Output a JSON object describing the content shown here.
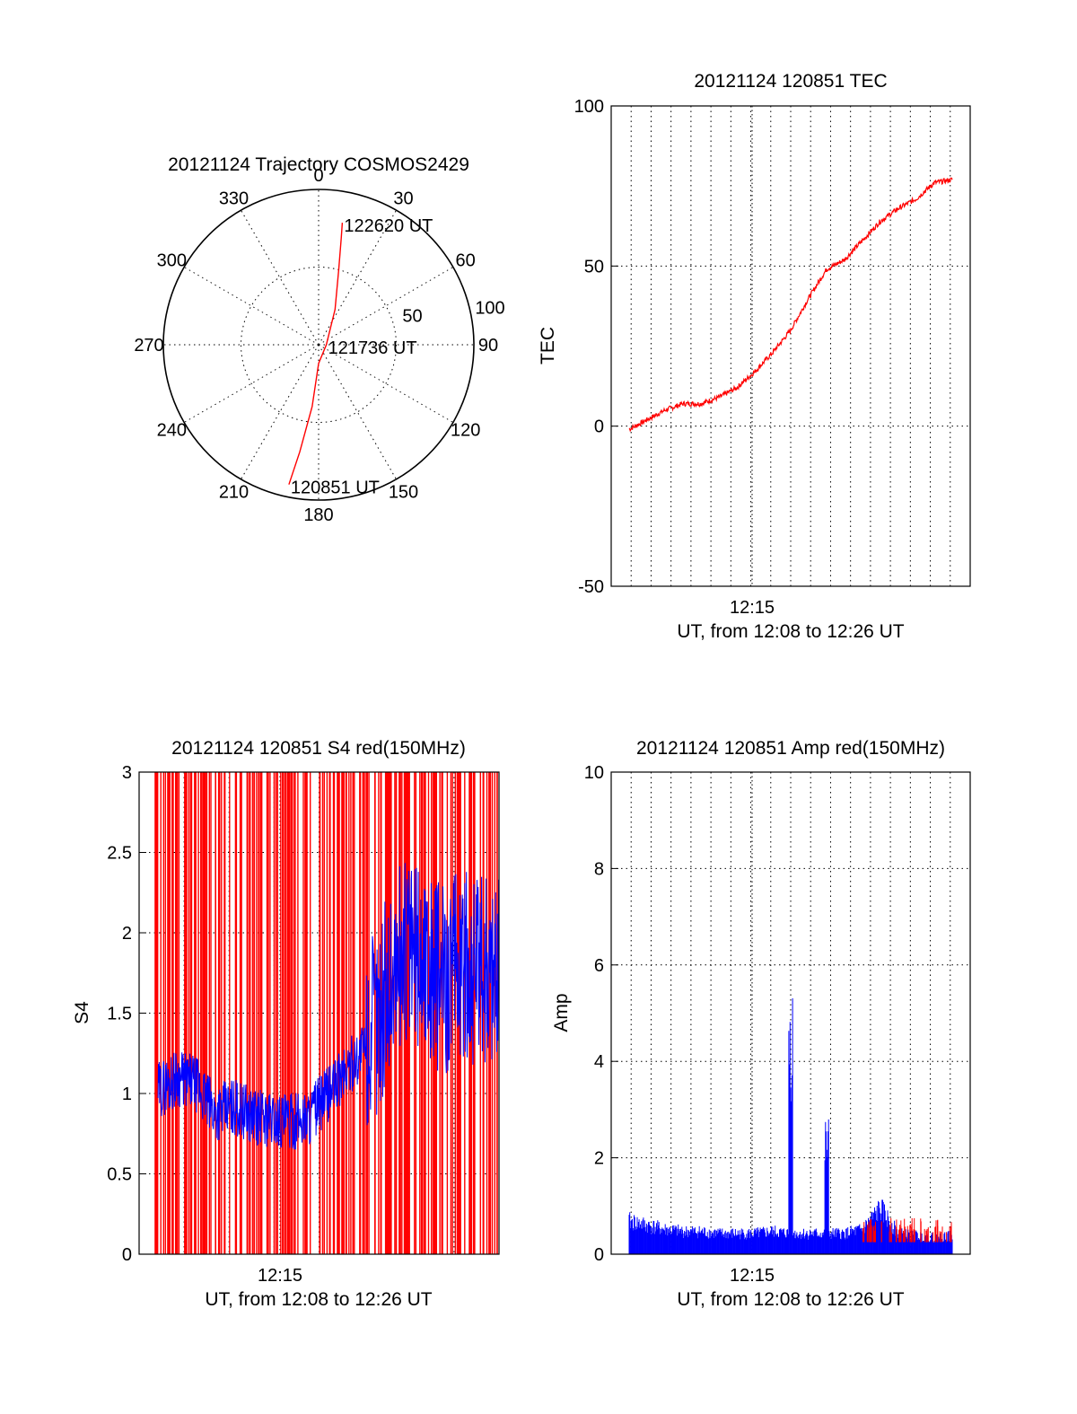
{
  "chart_data": [
    {
      "id": "trajectory",
      "type": "polar",
      "title": "20121124 Trajectory COSMOS2429",
      "azimuth_labels": [
        "0",
        "30",
        "60",
        "90",
        "120",
        "150",
        "180",
        "210",
        "240",
        "270",
        "300",
        "330"
      ],
      "radial_labels": [
        "50",
        "100"
      ],
      "series_color": "#ff0000",
      "points": [
        {
          "az": 192,
          "r": 92
        },
        {
          "az": 190,
          "r": 70
        },
        {
          "az": 186,
          "r": 40
        },
        {
          "az": 180,
          "r": 12
        },
        {
          "az": 90,
          "r": 5
        },
        {
          "az": 25,
          "r": 25
        },
        {
          "az": 15,
          "r": 50
        },
        {
          "az": 12,
          "r": 70
        },
        {
          "az": 11,
          "r": 80
        }
      ],
      "annotations": [
        {
          "text": "122620 UT",
          "az": 11,
          "r": 80
        },
        {
          "text": "121736 UT",
          "az": 90,
          "r": 5
        },
        {
          "text": "120851 UT",
          "az": 192,
          "r": 92
        }
      ]
    },
    {
      "id": "tec",
      "type": "line",
      "title": "20121124 120851 TEC",
      "ylabel": "TEC",
      "xlabel": "UT, from 12:08 to 12:26 UT",
      "xtick_label": "12:15",
      "ylim": [
        -50,
        100
      ],
      "yticks": [
        "-50",
        "0",
        "50",
        "100"
      ],
      "grid": true,
      "series_color": "#ff0000",
      "x_minutes": [
        0.0,
        1.0,
        2.0,
        3.0,
        4.0,
        5.0,
        6.0,
        7.0,
        8.0,
        9.0,
        10.0,
        11.0,
        12.0,
        13.0,
        14.0,
        15.0,
        16.0,
        17.0,
        18.0
      ],
      "values": [
        -1,
        2,
        5,
        7,
        7,
        9,
        12,
        17,
        23,
        30,
        40,
        49,
        52,
        58,
        64,
        68,
        71,
        76,
        77
      ]
    },
    {
      "id": "s4",
      "type": "line",
      "title": "20121124 120851 S4 red(150MHz)",
      "ylabel": "S4",
      "xlabel": "UT, from 12:08 to 12:26 UT",
      "xtick_label": "12:15",
      "ylim": [
        0,
        3
      ],
      "yticks": [
        "0",
        "0.5",
        "1",
        "1.5",
        "2",
        "2.5",
        "3"
      ],
      "grid": true,
      "spike_color": "#ff0000",
      "series_color": "#0000ff",
      "x_minutes": [
        0.0,
        1.0,
        2.0,
        3.0,
        4.0,
        5.0,
        6.0,
        7.0,
        8.0,
        9.0,
        10.0,
        11.0,
        12.0,
        13.0,
        14.0,
        15.0,
        16.0,
        17.0,
        18.0
      ],
      "values": [
        1.02,
        1.1,
        1.06,
        0.88,
        0.92,
        0.86,
        0.84,
        0.82,
        0.86,
        1.0,
        1.15,
        1.3,
        1.6,
        1.9,
        1.85,
        1.7,
        1.8,
        1.75,
        1.8
      ]
    },
    {
      "id": "amp",
      "type": "line",
      "title": "20121124 120851 Amp red(150MHz)",
      "ylabel": "Amp",
      "xlabel": "UT, from 12:08 to 12:26 UT",
      "xtick_label": "12:15",
      "ylim": [
        0,
        10
      ],
      "yticks": [
        "0",
        "2",
        "4",
        "6",
        "8",
        "10"
      ],
      "grid": true,
      "series_color": "#0000ff",
      "secondary_color": "#ff0000",
      "x_minutes": [
        0.0,
        1.0,
        2.0,
        3.0,
        4.0,
        5.0,
        6.0,
        7.0,
        8.0,
        9.0,
        10.0,
        11.0,
        12.0,
        13.0,
        14.0,
        15.0,
        16.0,
        17.0,
        18.0
      ],
      "values": [
        0.8,
        0.7,
        0.6,
        0.55,
        0.55,
        0.5,
        0.5,
        0.5,
        0.55,
        5.2,
        0.5,
        2.6,
        0.5,
        0.6,
        1.1,
        0.5,
        0.45,
        0.4,
        0.45
      ]
    }
  ]
}
